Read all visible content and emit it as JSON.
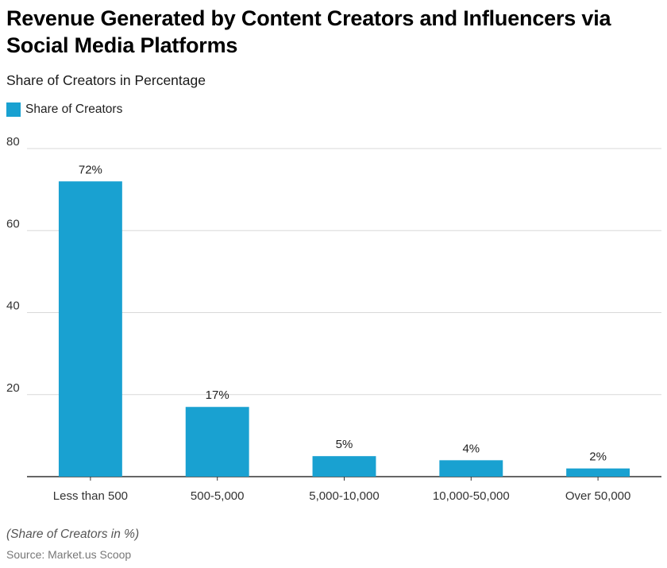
{
  "chart_data": {
    "type": "bar",
    "title": "Revenue Generated by Content Creators and Influencers via Social Media Platforms",
    "subtitle": "Share of Creators in Percentage",
    "categories": [
      "Less than 500",
      "500-5,000",
      "5,000-10,000",
      "10,000-50,000",
      "Over 50,000"
    ],
    "series": [
      {
        "name": "Share of Creators",
        "values": [
          72,
          17,
          5,
          4,
          2
        ],
        "labels": [
          "72%",
          "17%",
          "5%",
          "4%",
          "2%"
        ],
        "color": "#19a1d1"
      }
    ],
    "ylim": [
      0,
      80
    ],
    "yticks": [
      20,
      40,
      60,
      80
    ],
    "grid": true,
    "legend_position": "top-left",
    "xlabel": "",
    "ylabel": ""
  },
  "footer": {
    "note": "(Share of Creators in %)",
    "source": "Source: Market.us Scoop"
  },
  "colors": {
    "bar": "#19a1d1",
    "grid": "#d9d9d9",
    "axis": "#333333"
  }
}
